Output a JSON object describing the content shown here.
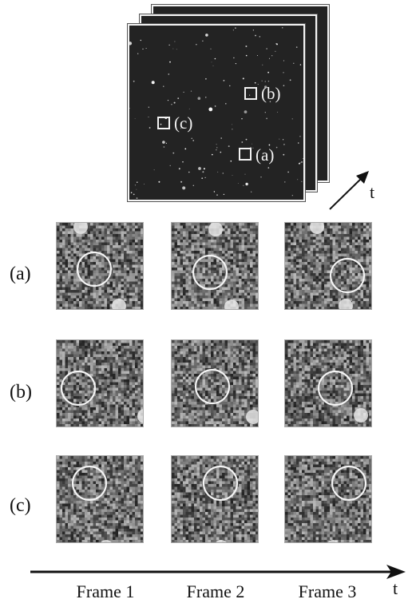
{
  "stack": {
    "regions": [
      {
        "id": "a",
        "label": "(a)"
      },
      {
        "id": "b",
        "label": "(b)"
      },
      {
        "id": "c",
        "label": "(c)"
      }
    ],
    "time_label": "t"
  },
  "grid": {
    "rows": [
      {
        "label": "(a)"
      },
      {
        "label": "(b)"
      },
      {
        "label": "(c)"
      }
    ]
  },
  "axis": {
    "time_label": "t",
    "frame_labels": [
      "Frame 1",
      "Frame 2",
      "Frame 3"
    ]
  },
  "colors": {
    "background": "#ffffff",
    "frame_fill": "#232323",
    "marker": "#f2f2f2",
    "patch_noise": "#7b7b7b"
  }
}
